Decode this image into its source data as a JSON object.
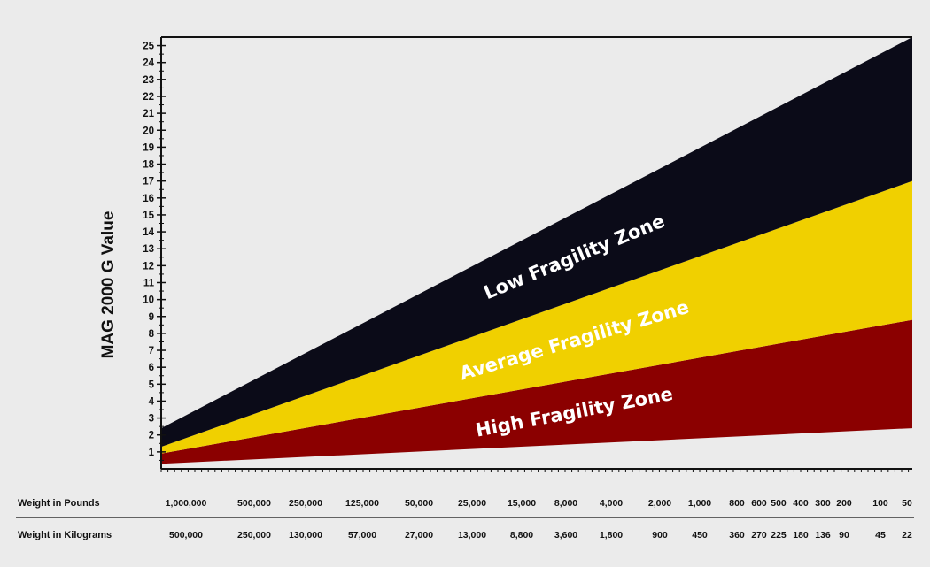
{
  "chart_data": {
    "type": "area",
    "ylabel": "MAG 2000 G Value",
    "ylim": [
      0,
      25.5
    ],
    "yticks": [
      1,
      2,
      3,
      4,
      5,
      6,
      7,
      8,
      9,
      10,
      11,
      12,
      13,
      14,
      15,
      16,
      17,
      18,
      19,
      20,
      21,
      22,
      23,
      24,
      25
    ],
    "x_rows": [
      {
        "label": "Weight in Pounds",
        "ticks": [
          "1,000,000",
          "500,000",
          "250,000",
          "125,000",
          "50,000",
          "25,000",
          "15,000",
          "8,000",
          "4,000",
          "2,000",
          "1,000",
          "800",
          "600",
          "500",
          "400",
          "300",
          "200",
          "100",
          "50"
        ]
      },
      {
        "label": "Weight in Kilograms",
        "ticks": [
          "500,000",
          "250,000",
          "130,000",
          "57,000",
          "27,000",
          "13,000",
          "8,800",
          "3,600",
          "1,800",
          "900",
          "450",
          "360",
          "270",
          "225",
          "180",
          "136",
          "90",
          "45",
          "22"
        ]
      }
    ],
    "series": [
      {
        "name": "High Fragility Zone",
        "color": "#8b0000",
        "lower": [
          0.3,
          2.4
        ],
        "upper": [
          0.9,
          8.8
        ],
        "text_color": "#ffffff"
      },
      {
        "name": "Average Fragility Zone",
        "color": "#f0d000",
        "lower": [
          0.9,
          8.8
        ],
        "upper": [
          1.3,
          17.0
        ],
        "text_color": "#ffffff"
      },
      {
        "name": "Low Fragility Zone",
        "color": "#0b0b18",
        "lower": [
          1.3,
          17.0
        ],
        "upper": [
          2.4,
          25.5
        ],
        "text_color": "#ffffff"
      }
    ]
  }
}
